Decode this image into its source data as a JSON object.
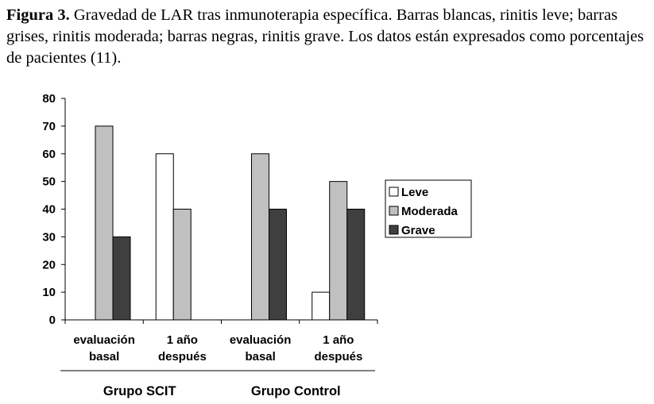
{
  "caption": {
    "label": "Figura 3.",
    "text": " Gravedad de LAR tras inmunoterapia específica. Barras blancas, rinitis leve; barras grises, rinitis moderada; barras negras, rinitis grave. Los datos están expresados como porcentajes de pacientes (11)."
  },
  "chart_data": {
    "type": "bar",
    "ylim": [
      0,
      80
    ],
    "yticks": [
      0,
      10,
      20,
      30,
      40,
      50,
      60,
      70,
      80
    ],
    "categories": [
      [
        "evaluación",
        "basal"
      ],
      [
        "1 año",
        "después"
      ],
      [
        "evaluación",
        "basal"
      ],
      [
        "1 año",
        "después"
      ]
    ],
    "groups": [
      "Grupo SCIT",
      "Grupo Control"
    ],
    "series": [
      {
        "name": "Leve",
        "color": "#ffffff",
        "values": [
          0,
          60,
          0,
          10
        ]
      },
      {
        "name": "Moderada",
        "color": "#c0c0c0",
        "values": [
          70,
          40,
          60,
          50
        ]
      },
      {
        "name": "Grave",
        "color": "#3f3f3f",
        "values": [
          30,
          0,
          40,
          40
        ]
      }
    ],
    "legend_position": "right",
    "grid": false
  }
}
